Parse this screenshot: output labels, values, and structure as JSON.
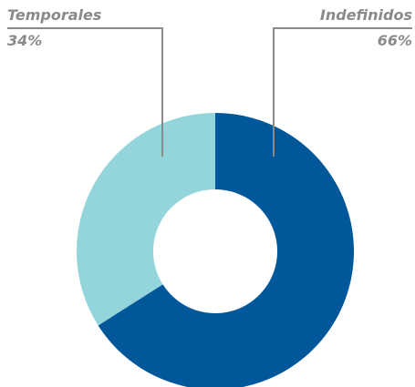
{
  "chart_data": {
    "type": "pie",
    "categories": [
      "Indefinidos",
      "Temporales"
    ],
    "values": [
      66,
      34
    ],
    "value_labels": [
      "66%",
      "34%"
    ],
    "colors": [
      "#00589b",
      "#94d5db"
    ]
  }
}
